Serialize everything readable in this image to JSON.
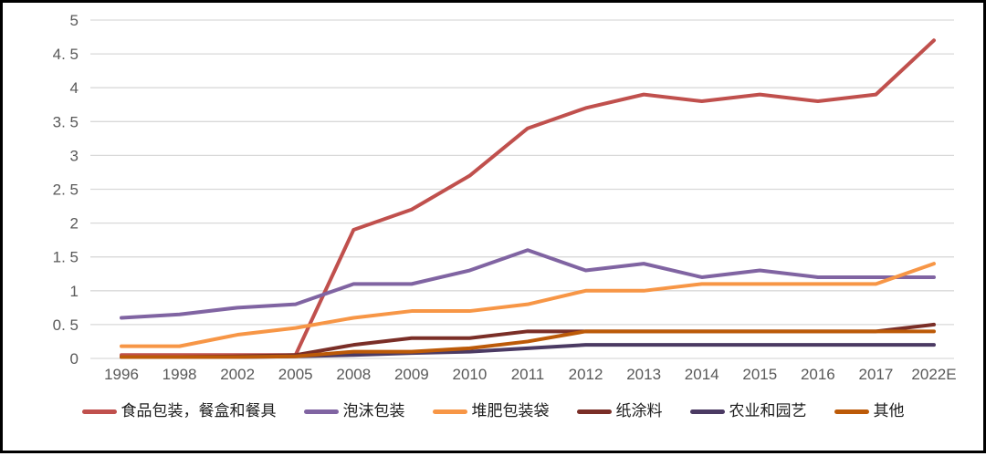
{
  "chart_data": {
    "type": "line",
    "title": "",
    "xlabel": "",
    "ylabel": "",
    "categories": [
      "1996",
      "1998",
      "2002",
      "2005",
      "2008",
      "2009",
      "2010",
      "2011",
      "2012",
      "2013",
      "2014",
      "2015",
      "2016",
      "2017",
      "2022E"
    ],
    "y_ticks": [
      0,
      0.5,
      1,
      1.5,
      2,
      2.5,
      3,
      3.5,
      4,
      4.5,
      5
    ],
    "y_tick_labels": [
      "0",
      "0. 5",
      "1",
      "1. 5",
      "2",
      "2. 5",
      "3",
      "3. 5",
      "4",
      "4. 5",
      "5"
    ],
    "ylim": [
      0,
      5
    ],
    "grid": "horizontal-only",
    "gridline_color": "#d9d9d9",
    "tick_label_color": "#595959",
    "legend_position": "bottom",
    "series": [
      {
        "name": "食品包装，餐盒和餐具",
        "color": "#c0504d",
        "values": [
          0.05,
          0.05,
          0.05,
          0.05,
          1.9,
          2.2,
          2.7,
          3.4,
          3.7,
          3.9,
          3.8,
          3.9,
          3.8,
          3.9,
          4.7
        ]
      },
      {
        "name": "泡沫包装",
        "color": "#8064a2",
        "values": [
          0.6,
          0.65,
          0.75,
          0.8,
          1.1,
          1.1,
          1.3,
          1.6,
          1.3,
          1.4,
          1.2,
          1.3,
          1.2,
          1.2,
          1.2
        ]
      },
      {
        "name": "堆肥包装袋",
        "color": "#f79646",
        "values": [
          0.18,
          0.18,
          0.35,
          0.45,
          0.6,
          0.7,
          0.7,
          0.8,
          1.0,
          1.0,
          1.1,
          1.1,
          1.1,
          1.1,
          1.4
        ]
      },
      {
        "name": "纸涂料",
        "color": "#7a2e27",
        "values": [
          0.02,
          0.02,
          0.03,
          0.05,
          0.2,
          0.3,
          0.3,
          0.4,
          0.4,
          0.4,
          0.4,
          0.4,
          0.4,
          0.4,
          0.5
        ]
      },
      {
        "name": "农业和园艺",
        "color": "#4b3a63",
        "values": [
          0.02,
          0.02,
          0.02,
          0.03,
          0.05,
          0.08,
          0.1,
          0.15,
          0.2,
          0.2,
          0.2,
          0.2,
          0.2,
          0.2,
          0.2
        ]
      },
      {
        "name": "其他",
        "color": "#bc5a08",
        "values": [
          0.02,
          0.02,
          0.02,
          0.03,
          0.1,
          0.1,
          0.15,
          0.25,
          0.4,
          0.4,
          0.4,
          0.4,
          0.4,
          0.4,
          0.4
        ]
      }
    ]
  }
}
